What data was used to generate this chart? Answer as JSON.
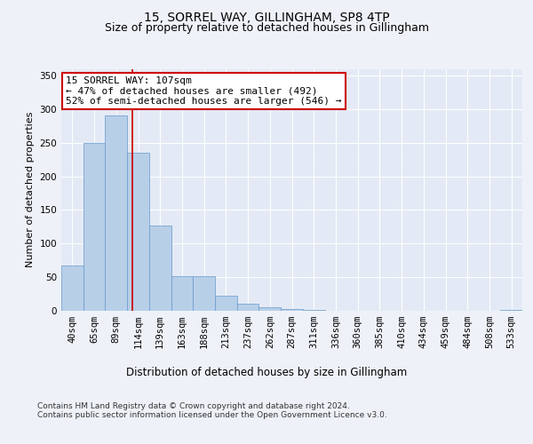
{
  "title": "15, SORREL WAY, GILLINGHAM, SP8 4TP",
  "subtitle": "Size of property relative to detached houses in Gillingham",
  "xlabel": "Distribution of detached houses by size in Gillingham",
  "ylabel": "Number of detached properties",
  "categories": [
    "40sqm",
    "65sqm",
    "89sqm",
    "114sqm",
    "139sqm",
    "163sqm",
    "188sqm",
    "213sqm",
    "237sqm",
    "262sqm",
    "287sqm",
    "311sqm",
    "336sqm",
    "360sqm",
    "385sqm",
    "410sqm",
    "434sqm",
    "459sqm",
    "484sqm",
    "508sqm",
    "533sqm"
  ],
  "values": [
    68,
    250,
    290,
    235,
    127,
    52,
    52,
    22,
    11,
    5,
    2,
    1,
    0,
    0,
    0,
    0,
    0,
    0,
    0,
    0,
    1
  ],
  "bar_color": "#b8cfe8",
  "bar_edge_color": "#6699cc",
  "vline_x": 2.75,
  "vline_color": "#cc0000",
  "annotation_text": "15 SORREL WAY: 107sqm\n← 47% of detached houses are smaller (492)\n52% of semi-detached houses are larger (546) →",
  "annotation_box_color": "#ffffff",
  "annotation_box_edge": "#cc0000",
  "ylim": [
    0,
    360
  ],
  "yticks": [
    0,
    50,
    100,
    150,
    200,
    250,
    300,
    350
  ],
  "background_color": "#eef2f8",
  "plot_bg_color": "#e4eaf5",
  "footer": "Contains HM Land Registry data © Crown copyright and database right 2024.\nContains public sector information licensed under the Open Government Licence v3.0.",
  "title_fontsize": 10,
  "subtitle_fontsize": 9,
  "xlabel_fontsize": 8.5,
  "ylabel_fontsize": 8,
  "tick_fontsize": 7.5,
  "annotation_fontsize": 8,
  "footer_fontsize": 6.5
}
